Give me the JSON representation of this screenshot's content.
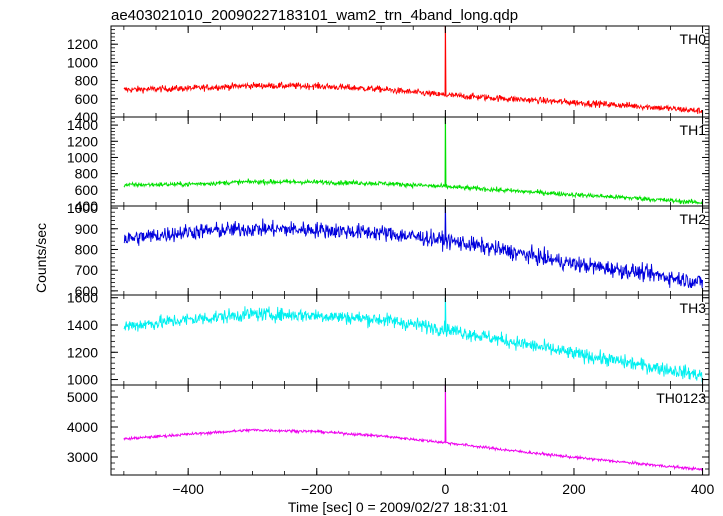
{
  "chart_data": {
    "type": "line",
    "title": "ae403021010_20090227183101_wam2_trn_4band_long.qdp",
    "xlabel": "Time [sec] 0 = 2009/02/27 18:31:01",
    "ylabel": "Counts/sec",
    "xlim": [
      -520,
      410
    ],
    "xticks": [
      -400,
      -200,
      0,
      200,
      400
    ],
    "grid": false,
    "panels": [
      {
        "name": "TH0",
        "color": "#ff0000",
        "ylim": [
          400,
          1400
        ],
        "yticks": [
          400,
          600,
          800,
          1000,
          1200
        ],
        "noise": 35,
        "trend_x": [
          -500,
          -400,
          -300,
          -200,
          -100,
          0,
          100,
          200,
          300,
          400
        ],
        "trend_y": [
          700,
          715,
          745,
          740,
          705,
          640,
          600,
          560,
          520,
          465
        ],
        "spike": {
          "x": 0,
          "y": 1400
        }
      },
      {
        "name": "TH1",
        "color": "#00e000",
        "ylim": [
          400,
          1500
        ],
        "yticks": [
          400,
          600,
          800,
          1000,
          1200,
          1400
        ],
        "noise": 28,
        "trend_x": [
          -500,
          -400,
          -300,
          -200,
          -100,
          0,
          100,
          200,
          300,
          400
        ],
        "trend_y": [
          660,
          670,
          700,
          695,
          680,
          640,
          590,
          540,
          495,
          440
        ],
        "spike": {
          "x": 0,
          "y": 1500
        }
      },
      {
        "name": "TH2",
        "color": "#0000dd",
        "ylim": [
          580,
          1010
        ],
        "yticks": [
          600,
          700,
          800,
          900,
          1000
        ],
        "noise": 38,
        "trend_x": [
          -500,
          -400,
          -300,
          -200,
          -100,
          0,
          100,
          200,
          300,
          400
        ],
        "trend_y": [
          850,
          885,
          900,
          895,
          880,
          845,
          790,
          730,
          690,
          640
        ],
        "spike": {
          "x": 0,
          "y": 1005
        }
      },
      {
        "name": "TH3",
        "color": "#00f0f0",
        "ylim": [
          960,
          1620
        ],
        "yticks": [
          1000,
          1200,
          1400,
          1600
        ],
        "noise": 50,
        "trend_x": [
          -500,
          -400,
          -300,
          -200,
          -100,
          0,
          100,
          200,
          300,
          400
        ],
        "trend_y": [
          1390,
          1440,
          1480,
          1470,
          1440,
          1370,
          1280,
          1190,
          1110,
          1030
        ],
        "spike": {
          "x": 0,
          "y": 1600
        }
      },
      {
        "name": "TH0123",
        "color": "#ee00ee",
        "ylim": [
          2400,
          5400
        ],
        "yticks": [
          3000,
          4000,
          5000
        ],
        "noise": 45,
        "trend_x": [
          -500,
          -400,
          -300,
          -200,
          -100,
          0,
          100,
          200,
          300,
          400
        ],
        "trend_y": [
          3600,
          3760,
          3900,
          3850,
          3700,
          3480,
          3220,
          2990,
          2780,
          2580
        ],
        "spike": {
          "x": 0,
          "y": 5400
        }
      }
    ]
  }
}
